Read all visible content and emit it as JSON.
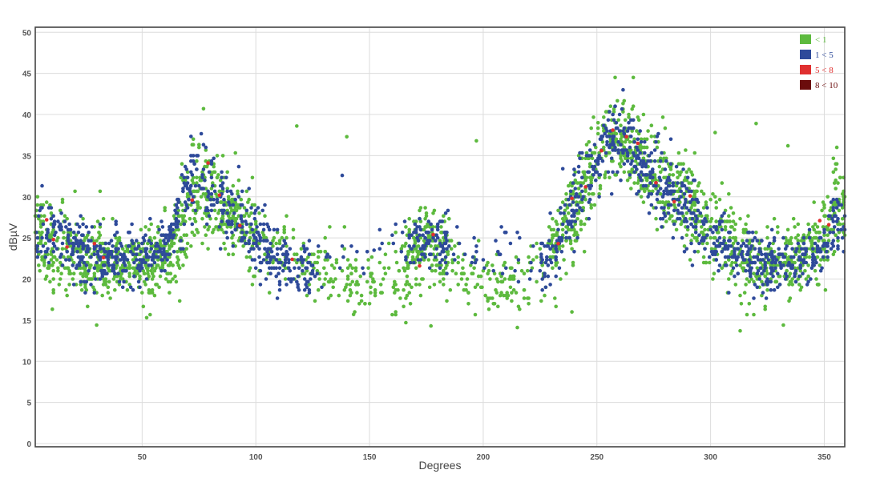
{
  "chart_data": {
    "type": "scatter",
    "title": "",
    "xlabel": "Degrees",
    "ylabel": "dBµV",
    "xlim": [
      0,
      360
    ],
    "ylim": [
      0,
      50
    ],
    "x_ticks": [
      50,
      100,
      150,
      200,
      250,
      300,
      350
    ],
    "y_ticks": [
      0,
      5,
      10,
      15,
      20,
      25,
      30,
      35,
      40,
      45,
      50
    ],
    "grid": true,
    "legend_position": "top-right",
    "series": [
      {
        "name": "< 1",
        "color": "#5dba3e",
        "envelope": [
          [
            0,
            25,
            6
          ],
          [
            10,
            24,
            5
          ],
          [
            20,
            23,
            4
          ],
          [
            30,
            22,
            4
          ],
          [
            40,
            22,
            4
          ],
          [
            50,
            22,
            4
          ],
          [
            60,
            23,
            4
          ],
          [
            65,
            24,
            5
          ],
          [
            70,
            29,
            6
          ],
          [
            75,
            31,
            5
          ],
          [
            80,
            30,
            5
          ],
          [
            90,
            28,
            5
          ],
          [
            100,
            25,
            5
          ],
          [
            110,
            23,
            4
          ],
          [
            120,
            21,
            4
          ],
          [
            130,
            21,
            4
          ],
          [
            140,
            20,
            4
          ],
          [
            150,
            19,
            4
          ],
          [
            160,
            20,
            4
          ],
          [
            170,
            23,
            4
          ],
          [
            175,
            25,
            4
          ],
          [
            180,
            24,
            4
          ],
          [
            190,
            21,
            4
          ],
          [
            200,
            20,
            4
          ],
          [
            210,
            19,
            3
          ],
          [
            220,
            20,
            4
          ],
          [
            230,
            23,
            5
          ],
          [
            240,
            28,
            5
          ],
          [
            250,
            34,
            5
          ],
          [
            255,
            37,
            5
          ],
          [
            260,
            37,
            5
          ],
          [
            265,
            36,
            5
          ],
          [
            270,
            34,
            5
          ],
          [
            280,
            31,
            5
          ],
          [
            290,
            29,
            5
          ],
          [
            300,
            26,
            5
          ],
          [
            310,
            24,
            4
          ],
          [
            320,
            22,
            4
          ],
          [
            330,
            22,
            4
          ],
          [
            340,
            22,
            4
          ],
          [
            350,
            25,
            5
          ],
          [
            355,
            29,
            5
          ]
        ],
        "sparse_segments": [
          [
            100,
            230
          ]
        ],
        "outliers": [
          [
            77,
            40.7
          ],
          [
            118,
            38.6
          ],
          [
            140,
            37.3
          ],
          [
            197,
            36.8
          ],
          [
            258,
            44.5
          ],
          [
            266,
            44.5
          ],
          [
            302,
            37.8
          ],
          [
            320,
            38.9
          ],
          [
            334,
            36.2
          ],
          [
            30,
            14.4
          ],
          [
            52,
            15.3
          ],
          [
            143,
            15.7
          ],
          [
            166,
            14.7
          ],
          [
            177,
            14.3
          ],
          [
            215,
            14.1
          ],
          [
            313,
            13.7
          ],
          [
            332,
            14.4
          ]
        ],
        "count": 2300
      },
      {
        "name": "1 < 5",
        "color": "#2e4a9a",
        "envelope": [
          [
            0,
            26,
            4
          ],
          [
            10,
            25,
            3.5
          ],
          [
            20,
            24,
            3
          ],
          [
            30,
            23,
            3
          ],
          [
            40,
            23,
            3
          ],
          [
            50,
            23,
            3
          ],
          [
            60,
            23,
            3
          ],
          [
            70,
            31,
            4
          ],
          [
            75,
            33,
            4
          ],
          [
            80,
            31,
            4
          ],
          [
            90,
            28,
            4
          ],
          [
            100,
            25,
            4
          ],
          [
            110,
            22,
            3
          ],
          [
            120,
            21,
            3
          ],
          [
            175,
            25,
            3
          ],
          [
            230,
            22,
            3
          ],
          [
            240,
            29,
            4
          ],
          [
            250,
            34,
            4
          ],
          [
            255,
            37,
            4
          ],
          [
            260,
            37,
            4
          ],
          [
            265,
            36,
            4
          ],
          [
            270,
            34,
            4
          ],
          [
            280,
            31,
            4
          ],
          [
            290,
            29,
            4
          ],
          [
            300,
            25,
            3
          ],
          [
            310,
            23,
            3
          ],
          [
            320,
            22,
            3
          ],
          [
            330,
            22,
            3
          ],
          [
            340,
            22,
            3
          ],
          [
            350,
            24,
            3
          ],
          [
            355,
            27,
            4
          ]
        ],
        "sparse_segments": [
          [
            125,
            165
          ],
          [
            185,
            225
          ]
        ],
        "outliers": [
          [
            138,
            32.6
          ],
          [
            235,
            33.4
          ],
          [
            152,
            23.5
          ]
        ],
        "count": 1500
      },
      {
        "name": "5 < 8",
        "color": "#e03030",
        "points": [
          [
            8,
            27.2
          ],
          [
            11,
            24.8
          ],
          [
            17,
            23.9
          ],
          [
            29,
            24.3
          ],
          [
            33,
            22.6
          ],
          [
            72,
            29.6
          ],
          [
            79,
            34.1
          ],
          [
            84,
            30.2
          ],
          [
            93,
            26.5
          ],
          [
            116,
            22.4
          ],
          [
            172,
            21.6
          ],
          [
            178,
            25.4
          ],
          [
            233,
            24.3
          ],
          [
            239,
            29.8
          ],
          [
            245,
            31.2
          ],
          [
            252,
            35.6
          ],
          [
            257,
            38.1
          ],
          [
            263,
            37.3
          ],
          [
            268,
            36.5
          ],
          [
            276,
            31.7
          ],
          [
            284,
            29.4
          ],
          [
            291,
            30.1
          ],
          [
            348,
            27.1
          ],
          [
            352,
            26.6
          ]
        ]
      },
      {
        "name": "8 < 10",
        "color": "#6b0c0c",
        "points": []
      }
    ]
  }
}
